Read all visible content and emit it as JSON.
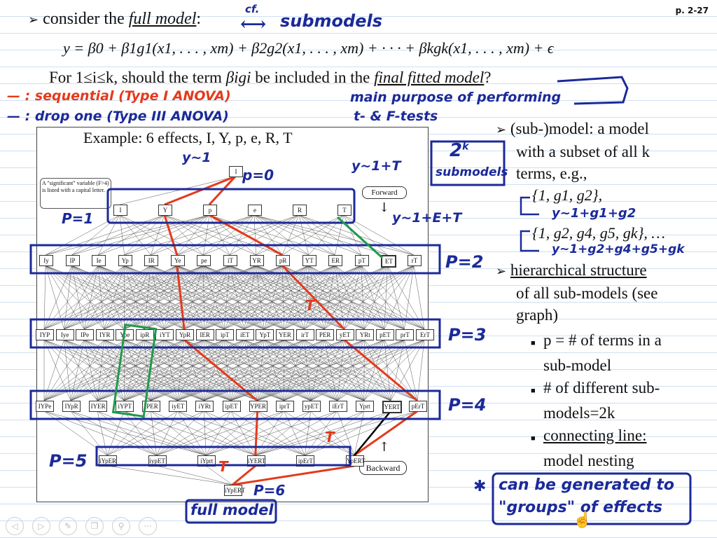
{
  "page": {
    "number": "p. 2-27"
  },
  "header": {
    "consider_prefix": "consider the",
    "full_model": "full model",
    "colon": ":",
    "cf": "cf.",
    "submodels": "submodels"
  },
  "equation": "y = β0 + β1g1(x1, . . . , xm) + β2g2(x1, . . . , xm) + · · · + βkgk(x1, . . . , xm) + ϵ",
  "question": {
    "prefix": "For 1≤i≤k, should the term",
    "term": "βigi",
    "middle": "be included in the",
    "final": "final fitted model",
    "end": "?"
  },
  "annotations": {
    "sequential": "—  : sequential (Type I ANOVA)",
    "drop_one": "—  : drop one (Type III ANOVA)",
    "main_purpose_1": "main purpose of performing",
    "main_purpose_2": "t- & F-tests",
    "twok": "2",
    "twok_sup": "k",
    "twok_sub": "submodels",
    "y1": "y~1",
    "p0": "p=0",
    "y1t": "y~1+T",
    "y1et": "y~1+E+T",
    "p1": "P=1",
    "p2": "P=2",
    "p3": "P=3",
    "p4": "P=4",
    "p5": "P=5",
    "p6": "P=6",
    "t_mark": "T",
    "full_model_box": "full model",
    "model1": "y~1+g1+g2",
    "model2": "y~1+g2+g4+g5+gk",
    "star_note_1": "can be generated to",
    "star_note_2": "\"groups\" of effects"
  },
  "figure": {
    "example": "Example: 6 effects, I, Y, p, e, R, T",
    "note": "A \"significant\" variable (F>4) is listed with a capital letter.",
    "forward": "Forward",
    "backward": "Backward",
    "levels": [
      [
        "I"
      ],
      [
        "I",
        "Y",
        "p",
        "e",
        "R",
        "T"
      ],
      [
        "Iy",
        "IP",
        "Ie",
        "Yp",
        "IR",
        "Ye",
        "pe",
        "iT",
        "YR",
        "pR",
        "YT",
        "ER",
        "pT",
        "ET",
        "rT"
      ],
      [
        "IYP",
        "Iye",
        "IPe",
        "IYR",
        "Ype",
        "ipR",
        "iYT",
        "YpR",
        "IER",
        "ipT",
        "iET",
        "YpT",
        "YER",
        "irT",
        "PER",
        "yET",
        "YRt",
        "pET",
        "prT",
        "ErT"
      ],
      [
        "IYPe",
        "IYpR",
        "IYER",
        "iYPT",
        "iPER",
        "iyET",
        "iYRt",
        "ipET",
        "YPER",
        "iprT",
        "ypET",
        "iErT",
        "Yprt",
        "YERT",
        "pErT"
      ],
      [
        "iYpER",
        "iypET",
        "iYprt",
        "iYERT",
        "ipErT",
        "YpERT"
      ],
      [
        "iYpERT"
      ]
    ]
  },
  "right_panel": {
    "b1_line1": "(sub-)model: a model",
    "b1_line2": "with a subset of all k",
    "b1_line3": "terms, e.g.,",
    "ex1": "{1, g1, g2},",
    "ex2": "{1, g2, g4, g5, gk}, …",
    "b2_line1": "hierarchical structure",
    "b2_line2": "of all sub-models (see",
    "b2_line3": "graph)",
    "s1_line1": "p = # of terms in a",
    "s1_line2": "sub-model",
    "s2_line1": "# of different sub-",
    "s2_line2": "models=2k",
    "s3_line1": "connecting line:",
    "s3_line2": "model nesting"
  },
  "toolbar": [
    {
      "icon": "prev-icon",
      "glyph": "◁"
    },
    {
      "icon": "next-icon",
      "glyph": "▷"
    },
    {
      "icon": "pen-icon",
      "glyph": "✎"
    },
    {
      "icon": "copy-icon",
      "glyph": "❐"
    },
    {
      "icon": "zoom-icon",
      "glyph": "⚲"
    },
    {
      "icon": "more-icon",
      "glyph": "···"
    }
  ],
  "colors": {
    "blue_ink": "#1b2a99",
    "red_ink": "#e43a1b",
    "green_ink": "#1f9a4a"
  }
}
